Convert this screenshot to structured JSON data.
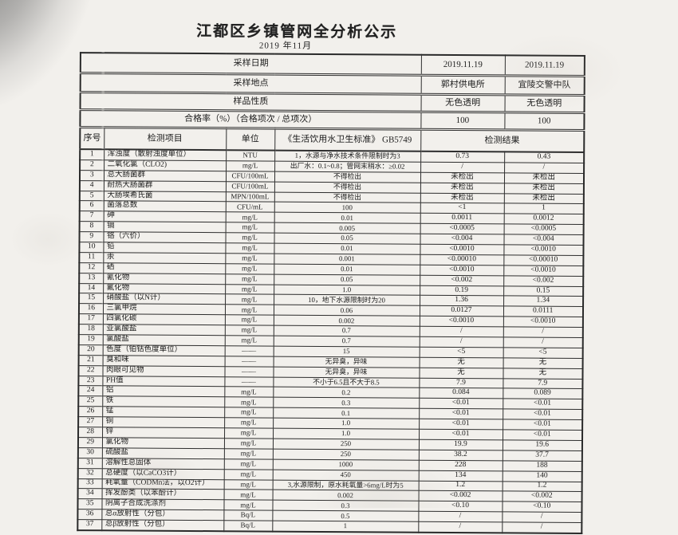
{
  "page": {
    "title": "江都区乡镇管网全分析公示",
    "subtitle": "2019 年11月"
  },
  "colors": {
    "paper": "#f2f0ec",
    "ink": "#1e1e1e",
    "line": "#2e2e2e",
    "corner_shadow": "#8a8a8a"
  },
  "info": {
    "rows": [
      {
        "label": "采样日期",
        "v1": "2019.11.19",
        "v2": "2019.11.19"
      },
      {
        "label": "采样地点",
        "v1": "郭村供电所",
        "v2": "宜陵交警中队"
      },
      {
        "label": "样品性质",
        "v1": "无色透明",
        "v2": "无色透明"
      },
      {
        "label": "合格率（%）（合格项次 / 总项次）",
        "v1": "100",
        "v2": "100"
      }
    ]
  },
  "table": {
    "headers": {
      "no": "序号",
      "item": "检测项目",
      "unit": "单位",
      "standard": "《生活饮用水卫生标准》 GB5749",
      "result": "检测结果"
    },
    "rows": [
      {
        "no": "1",
        "item": "浑浊度（散射浊度单位）",
        "unit": "NTU",
        "standard": "1，水源与净水技术条件限制时为3",
        "r1": "0.73",
        "r2": "0.43"
      },
      {
        "no": "2",
        "item": "二氧化氯（CLO2)",
        "unit": "mg/L",
        "standard": "出厂水：0.1~0.8；管网末稍水：≥0.02",
        "r1": "/",
        "r2": "/"
      },
      {
        "no": "3",
        "item": "总大肠菌群",
        "unit": "CFU/100mL",
        "standard": "不得检出",
        "r1": "未检出",
        "r2": "未检出"
      },
      {
        "no": "4",
        "item": "耐热大肠菌群",
        "unit": "CFU/100mL",
        "standard": "不得检出",
        "r1": "未检出",
        "r2": "未检出"
      },
      {
        "no": "5",
        "item": "大肠埃希氏菌",
        "unit": "MPN/100mL",
        "standard": "不得检出",
        "r1": "未检出",
        "r2": "未检出"
      },
      {
        "no": "6",
        "item": "菌落总数",
        "unit": "CFU/mL",
        "standard": "100",
        "r1": "<1",
        "r2": "1"
      },
      {
        "no": "7",
        "item": "砷",
        "unit": "mg/L",
        "standard": "0.01",
        "r1": "0.0011",
        "r2": "0.0012"
      },
      {
        "no": "8",
        "item": "镉",
        "unit": "mg/L",
        "standard": "0.005",
        "r1": "<0.0005",
        "r2": "<0.0005"
      },
      {
        "no": "9",
        "item": "铬（六价）",
        "unit": "mg/L",
        "standard": "0.05",
        "r1": "<0.004",
        "r2": "<0.004"
      },
      {
        "no": "10",
        "item": "铅",
        "unit": "mg/L",
        "standard": "0.01",
        "r1": "<0.0010",
        "r2": "<0.0010"
      },
      {
        "no": "11",
        "item": "汞",
        "unit": "mg/L",
        "standard": "0.001",
        "r1": "<0.00010",
        "r2": "<0.00010"
      },
      {
        "no": "12",
        "item": "硒",
        "unit": "mg/L",
        "standard": "0.01",
        "r1": "<0.0010",
        "r2": "<0.0010"
      },
      {
        "no": "13",
        "item": "氰化物",
        "unit": "mg/L",
        "standard": "0.05",
        "r1": "<0.002",
        "r2": "<0.002"
      },
      {
        "no": "14",
        "item": "氟化物",
        "unit": "mg/L",
        "standard": "1.0",
        "r1": "0.19",
        "r2": "0.15"
      },
      {
        "no": "15",
        "item": "硝酸盐（以N计）",
        "unit": "mg/L",
        "standard": "10，地下水源限制时为20",
        "r1": "1.36",
        "r2": "1.34"
      },
      {
        "no": "16",
        "item": "三氯甲烷",
        "unit": "mg/L",
        "standard": "0.06",
        "r1": "0.0127",
        "r2": "0.0111"
      },
      {
        "no": "17",
        "item": "四氯化碳",
        "unit": "mg/L",
        "standard": "0.002",
        "r1": "<0.0010",
        "r2": "<0.0010"
      },
      {
        "no": "18",
        "item": "亚氯酸盐",
        "unit": "mg/L",
        "standard": "0.7",
        "r1": "/",
        "r2": "/"
      },
      {
        "no": "19",
        "item": "氯酸盐",
        "unit": "mg/L",
        "standard": "0.7",
        "r1": "/",
        "r2": "/"
      },
      {
        "no": "20",
        "item": "色度（铂钴色度单位）",
        "unit": "——",
        "standard": "15",
        "r1": "<5",
        "r2": "<5"
      },
      {
        "no": "21",
        "item": "臭和味",
        "unit": "——",
        "standard": "无异臭，异味",
        "r1": "无",
        "r2": "无"
      },
      {
        "no": "22",
        "item": "肉眼可见物",
        "unit": "——",
        "standard": "无异臭，异味",
        "r1": "无",
        "r2": "无"
      },
      {
        "no": "23",
        "item": "PH值",
        "unit": "——",
        "standard": "不小于6.5且不大于8.5",
        "r1": "7.9",
        "r2": "7.9"
      },
      {
        "no": "24",
        "item": "铝",
        "unit": "mg/L",
        "standard": "0.2",
        "r1": "0.084",
        "r2": "0.089"
      },
      {
        "no": "25",
        "item": "铁",
        "unit": "mg/L",
        "standard": "0.3",
        "r1": "<0.01",
        "r2": "<0.01"
      },
      {
        "no": "26",
        "item": "锰",
        "unit": "mg/L",
        "standard": "0.1",
        "r1": "<0.01",
        "r2": "<0.01"
      },
      {
        "no": "27",
        "item": "铜",
        "unit": "mg/L",
        "standard": "1.0",
        "r1": "<0.01",
        "r2": "<0.01"
      },
      {
        "no": "28",
        "item": "锌",
        "unit": "mg/L",
        "standard": "1.0",
        "r1": "<0.01",
        "r2": "<0.01"
      },
      {
        "no": "29",
        "item": "氯化物",
        "unit": "mg/L",
        "standard": "250",
        "r1": "19.9",
        "r2": "19.6"
      },
      {
        "no": "30",
        "item": "硫酸盐",
        "unit": "mg/L",
        "standard": "250",
        "r1": "38.2",
        "r2": "37.7"
      },
      {
        "no": "31",
        "item": "溶解性总固体",
        "unit": "mg/L",
        "standard": "1000",
        "r1": "228",
        "r2": "188"
      },
      {
        "no": "32",
        "item": "总硬度（以CaCO3计）",
        "unit": "mg/L",
        "standard": "450",
        "r1": "134",
        "r2": "140"
      },
      {
        "no": "33",
        "item": "耗氧量（CODMn法，以O2计）",
        "unit": "mg/L",
        "standard": "3,水源限制，原水耗氧量>6mg/L时为5",
        "r1": "1.2",
        "r2": "1.2"
      },
      {
        "no": "34",
        "item": "挥发酚类（以苯酚计）",
        "unit": "mg/L",
        "standard": "0.002",
        "r1": "<0.002",
        "r2": "<0.002"
      },
      {
        "no": "35",
        "item": "阴离子合成洗涤剂",
        "unit": "mg/L",
        "standard": "0.3",
        "r1": "<0.10",
        "r2": "<0.10"
      },
      {
        "no": "36",
        "item": "总α放射性（分包）",
        "unit": "Bq/L",
        "standard": "0.5",
        "r1": "/",
        "r2": "/"
      },
      {
        "no": "37",
        "item": "总β放射性（分包）",
        "unit": "Bq/L",
        "standard": "1",
        "r1": "/",
        "r2": "/"
      }
    ]
  }
}
